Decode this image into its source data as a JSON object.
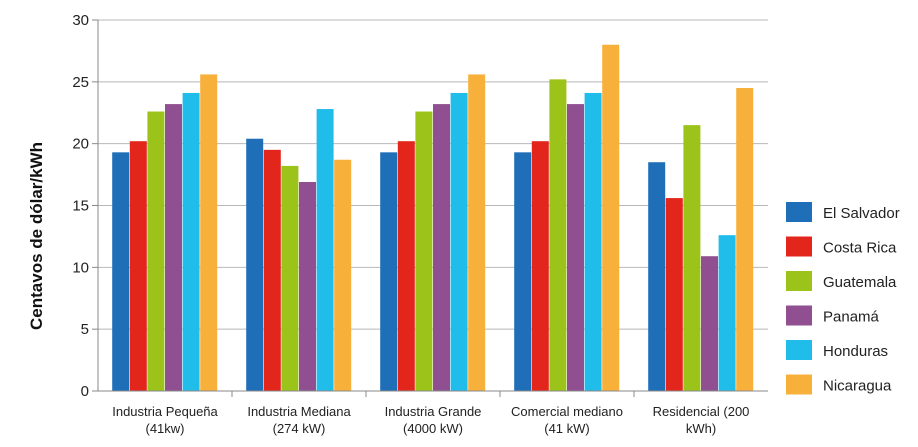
{
  "chart_data": {
    "type": "bar",
    "title": "",
    "xlabel": "",
    "ylabel": "Centavos de dólar/kWh",
    "ylim": [
      0,
      30
    ],
    "yticks": [
      0,
      5,
      10,
      15,
      20,
      25,
      30
    ],
    "grid": true,
    "legend_position": "right",
    "categories": [
      [
        "Industria Pequeña",
        "(41kw)"
      ],
      [
        "Industria Mediana",
        "(274 kW)"
      ],
      [
        "Industria Grande",
        "(4000 kW)"
      ],
      [
        "Comercial mediano",
        "(41 kW)"
      ],
      [
        "Residencial (200",
        "kWh)"
      ]
    ],
    "series": [
      {
        "name": "El Salvador",
        "color": "#1f6fb8",
        "values": [
          19.3,
          20.4,
          19.3,
          19.3,
          18.5
        ]
      },
      {
        "name": "Costa Rica",
        "color": "#e3261b",
        "values": [
          20.2,
          19.5,
          20.2,
          20.2,
          15.6
        ]
      },
      {
        "name": "Guatemala",
        "color": "#9cc31a",
        "values": [
          22.6,
          18.2,
          22.6,
          25.2,
          21.5
        ]
      },
      {
        "name": "Panamá",
        "color": "#8f4f91",
        "values": [
          23.2,
          16.9,
          23.2,
          23.2,
          10.9
        ]
      },
      {
        "name": "Honduras",
        "color": "#20bdea",
        "values": [
          24.1,
          22.8,
          24.1,
          24.1,
          12.6
        ]
      },
      {
        "name": "Nicaragua",
        "color": "#f7b13b",
        "values": [
          25.6,
          18.7,
          25.6,
          28.0,
          24.5
        ]
      }
    ]
  }
}
